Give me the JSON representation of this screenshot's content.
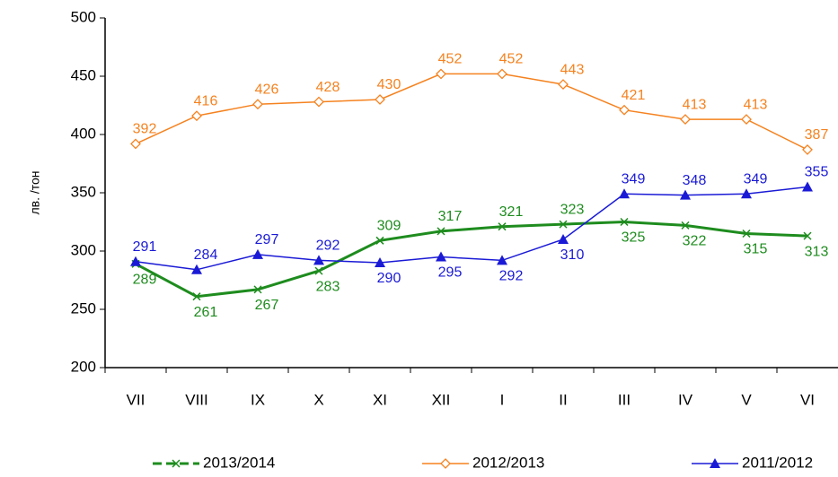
{
  "chart_data": {
    "type": "line",
    "y_label": "лв. /тон",
    "categories": [
      "VII",
      "VIII",
      "IX",
      "X",
      "XI",
      "XII",
      "I",
      "II",
      "III",
      "IV",
      "V",
      "VI"
    ],
    "series": [
      {
        "name": "2013/2014",
        "color": "#1e8c1e",
        "marker": "x",
        "values": [
          289,
          261,
          267,
          283,
          309,
          317,
          321,
          323,
          325,
          322,
          315,
          313
        ]
      },
      {
        "name": "2012/2013",
        "color": "#f5821f",
        "marker": "diamond",
        "values": [
          392,
          416,
          426,
          428,
          430,
          452,
          452,
          443,
          421,
          413,
          413,
          387
        ]
      },
      {
        "name": "2011/2012",
        "color": "#1a1ad6",
        "marker": "triangle",
        "values": [
          291,
          284,
          297,
          292,
          290,
          295,
          292,
          310,
          349,
          348,
          349,
          355
        ]
      }
    ],
    "ylim": [
      200,
      500
    ],
    "yticks": [
      200,
      250,
      300,
      350,
      400,
      450,
      500
    ],
    "grid": false,
    "legend": "bottom"
  }
}
